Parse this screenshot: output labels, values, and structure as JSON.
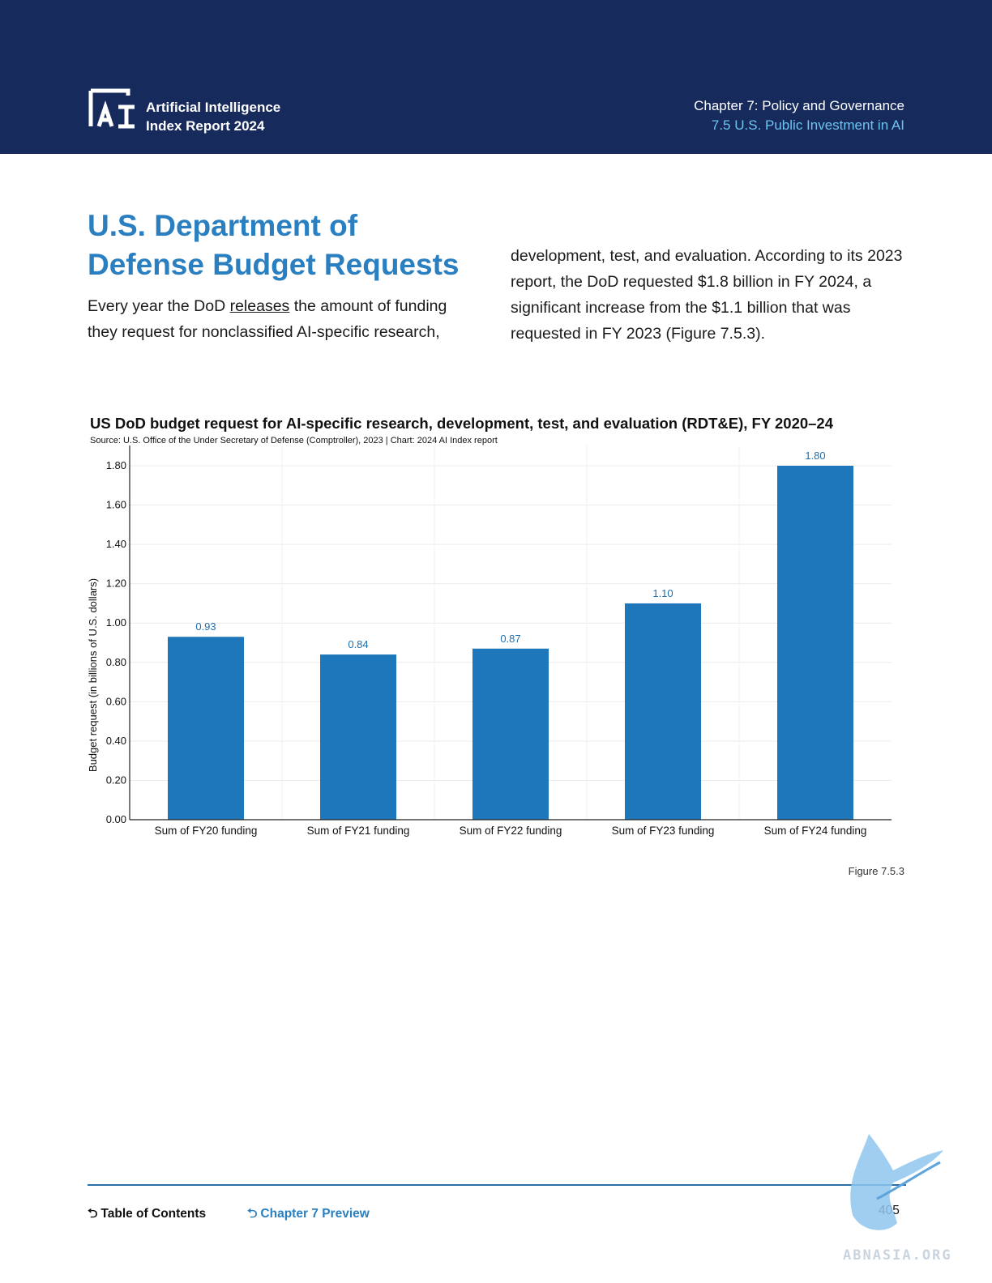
{
  "header": {
    "brand_line1": "Artificial Intelligence",
    "brand_line2": "Index Report 2024",
    "chapter_title": "Chapter 7: Policy and Governance",
    "section_label": "7.5 U.S. Public Investment in AI",
    "colors": {
      "background": "#172a5c",
      "section_label": "#6cc4f2"
    }
  },
  "article": {
    "title": "U.S. Department of Defense Budget Requests",
    "para_left_1": "Every year the DoD ",
    "para_left_link": "releases",
    "para_left_2": " the amount of funding they request for nonclassified AI-specific research,",
    "para_right": "development, test, and evaluation. According to its 2023 report, the DoD requested $1.8 billion in FY 2024, a significant increase from the $1.1 billion that was requested in FY 2023 (Figure 7.5.3).",
    "title_color": "#2a7fc1"
  },
  "chart_data": {
    "type": "bar",
    "title": "US DoD budget request for AI-specific research, development, test, and evaluation (RDT&E), FY 2020–24",
    "subtitle": "Source: U.S. Office of the Under Secretary of Defense (Comptroller), 2023 | Chart: 2024 AI Index report",
    "ylabel": "Budget request (in billions of U.S. dollars)",
    "xlabel": "",
    "categories": [
      "Sum of FY20 funding",
      "Sum of FY21 funding",
      "Sum of FY22 funding",
      "Sum of FY23 funding",
      "Sum of FY24 funding"
    ],
    "values": [
      0.93,
      0.84,
      0.87,
      1.1,
      1.8
    ],
    "value_labels": [
      "0.93",
      "0.84",
      "0.87",
      "1.10",
      "1.80"
    ],
    "ylim": [
      0,
      1.8
    ],
    "yticks": [
      "0.00",
      "0.20",
      "0.40",
      "0.60",
      "0.80",
      "1.00",
      "1.20",
      "1.40",
      "1.60",
      "1.80"
    ],
    "grid": true,
    "legend": "none",
    "bar_color": "#1f77bb",
    "label_color": "#1f6fae"
  },
  "figure_label": "Figure 7.5.3",
  "footer": {
    "toc_label": "Table of Contents",
    "preview_label": "Chapter 7 Preview",
    "page_number": "405",
    "arrow_glyph": "⮌"
  },
  "watermark": {
    "text": "ABNASIA.ORG",
    "icon": "griffin-icon"
  }
}
